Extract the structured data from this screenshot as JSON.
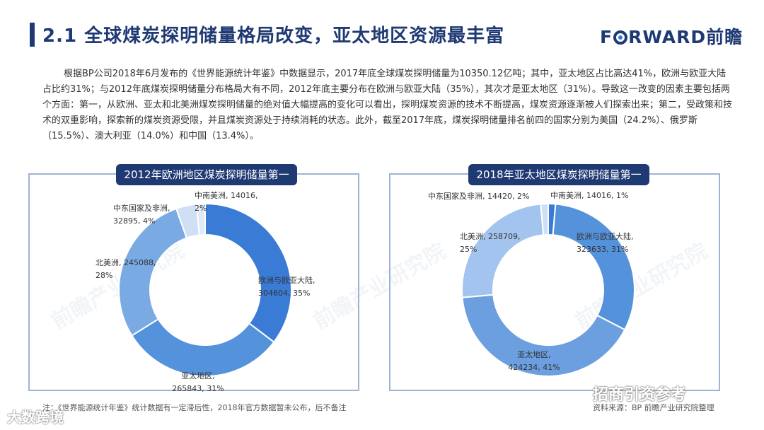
{
  "header": {
    "title": "2.1  全球煤炭探明储量格局改变，亚太地区资源最丰富",
    "logo_text": "F  RWARD前瞻"
  },
  "body": {
    "paragraph": "根据BP公司2018年6月发布的《世界能源统计年鉴》中数据显示，2017年底全球煤炭探明储量为10350.12亿吨；其中，亚太地区占比高达41%，欧洲与欧亚大陆占比约31%；与2012年底煤炭探明储量分布格局大有不同，2012年底主要分布在欧洲与欧亚大陆（35%），其次才是亚太地区（31%）。导致这一改变的因素主要包括两个方面：第一，从欧洲、亚太和北美洲煤炭探明储量的绝对值大幅提高的变化可以看出，探明煤炭资源的技术不断提高，煤炭资源逐渐被人们探索出来；第二，受政策和技术的双重影响，探索新的煤炭资源受限，并且煤炭资源处于持续消耗的状态。此外，截至2017年底，煤炭探明储量排名前四的国家分别为美国（24.2%）、俄罗斯（15.5%）、澳大利亚（14.0%）和中国（13.4%）。"
  },
  "footer": {
    "note": "注：《世界能源统计年鉴》统计数据有一定滞后性，2018年官方数据暂未公布，后不备注",
    "source": "资料来源：BP 前瞻产业研究院整理"
  },
  "watermarks": {
    "bottom_left": "大数跨境",
    "bottom_right": "招商引资参考",
    "background": "前瞻产业研究院"
  },
  "colors": {
    "title": "#1f3a73",
    "slice_palette": [
      "#3a7bd5",
      "#5592dc",
      "#7aaae4",
      "#a3c4ee",
      "#cfdff5",
      "#dfe9f7"
    ]
  },
  "chart_data": [
    {
      "type": "pie",
      "title": "2012年欧洲地区煤炭探明储量第一",
      "categories": [
        "欧洲与欧亚大陆",
        "亚太地区",
        "北美洲",
        "中东国家及非洲",
        "中南美洲"
      ],
      "values": [
        304604,
        265843,
        245088,
        32895,
        14016
      ],
      "percents": [
        35,
        31,
        28,
        4,
        2
      ],
      "labels": [
        [
          "欧洲与欧亚大陆,",
          "304604, 35%"
        ],
        [
          "亚太地区,",
          "265843, 31%"
        ],
        [
          "北美洲, 245088,",
          "28%"
        ],
        [
          "中东国家及非洲,",
          "32895, 4%"
        ],
        [
          "中南美洲, 14016,",
          "2%"
        ]
      ],
      "donut": true
    },
    {
      "type": "pie",
      "title": "2018年亚太地区煤炭探明储量第一",
      "categories": [
        "中南美洲",
        "欧洲与欧亚大陆",
        "亚太地区",
        "北美洲",
        "中东国家及非洲"
      ],
      "values": [
        14016,
        323633,
        424234,
        258709,
        14420
      ],
      "percents": [
        1,
        31,
        41,
        25,
        2
      ],
      "labels": [
        [
          "中南美洲, 14016, 1%"
        ],
        [
          "欧洲与欧亚大陆,",
          "323633, 31%"
        ],
        [
          "亚太地区,",
          "424234, 41%"
        ],
        [
          "北美洲, 258709,",
          "25%"
        ],
        [
          "中东国家及非洲, 14420, 2%"
        ]
      ],
      "donut": true
    }
  ]
}
